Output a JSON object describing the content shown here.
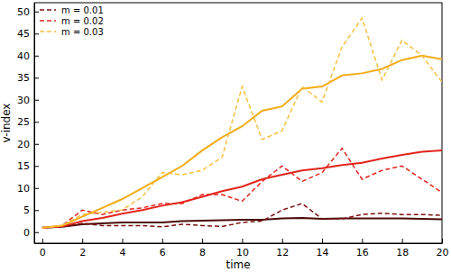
{
  "chart_data": {
    "type": "line",
    "x_label": "time",
    "y_label": "v-index",
    "x": [
      0,
      1,
      2,
      3,
      4,
      5,
      6,
      7,
      8,
      9,
      10,
      11,
      12,
      13,
      14,
      15,
      16,
      17,
      18,
      19,
      20
    ],
    "xlim": [
      -0.4,
      20
    ],
    "xticks": [
      0,
      2,
      4,
      6,
      8,
      10,
      12,
      14,
      16,
      18,
      20
    ],
    "ylim": [
      -2.5,
      52
    ],
    "yticks": [
      0,
      5,
      10,
      15,
      20,
      25,
      30,
      35,
      40,
      45,
      50
    ],
    "grid": false,
    "legend": "upper left",
    "series": [
      {
        "color": "#4a0a0a",
        "line_style": "solid",
        "values": [
          1,
          1.2,
          1.8,
          2,
          2.2,
          2.2,
          2.2,
          2.5,
          2.6,
          2.7,
          2.8,
          2.8,
          3.1,
          3.2,
          3,
          3.1,
          3.1,
          3.1,
          3.1,
          3,
          2.9
        ]
      },
      {
        "name": "m = 0.01",
        "color": "#7a1010",
        "line_style": "dashed",
        "values": [
          1,
          1.2,
          2,
          1.5,
          1.5,
          1.5,
          1.2,
          1.8,
          1.5,
          1.3,
          2.2,
          2.5,
          5,
          6.5,
          3,
          3,
          4,
          4.3,
          4,
          4,
          3.8
        ]
      },
      {
        "color": "#e3241b",
        "line_style": "solid",
        "values": [
          1,
          1.3,
          2.5,
          3.2,
          4.2,
          5,
          6,
          6.8,
          8,
          9.3,
          10.3,
          12,
          13,
          14,
          14.5,
          15.2,
          15.7,
          16.7,
          17.5,
          18.2,
          18.5
        ]
      },
      {
        "name": "m = 0.02",
        "color": "#e3241b",
        "line_style": "dashed",
        "values": [
          1,
          1.5,
          5,
          4,
          5,
          5.5,
          6.5,
          6.5,
          8.5,
          8.5,
          7,
          11.5,
          15,
          11.5,
          13.5,
          19,
          12,
          14,
          15,
          12,
          9
        ]
      },
      {
        "color": "#f2ab14",
        "line_style": "solid",
        "values": [
          1,
          1.5,
          3.5,
          5.5,
          7.5,
          10,
          12.5,
          15,
          18.5,
          21.5,
          24,
          27.5,
          28.5,
          32.5,
          33,
          35.5,
          36,
          37,
          39,
          40,
          39.2
        ]
      },
      {
        "name": "m = 0.03",
        "color": "#f5c040",
        "line_style": "dashed",
        "values": [
          1,
          1.5,
          4,
          4.5,
          5,
          8,
          13.5,
          13,
          14,
          17,
          33,
          21,
          23,
          33,
          29.5,
          42,
          48.5,
          34.5,
          43.5,
          40,
          34
        ]
      }
    ]
  }
}
